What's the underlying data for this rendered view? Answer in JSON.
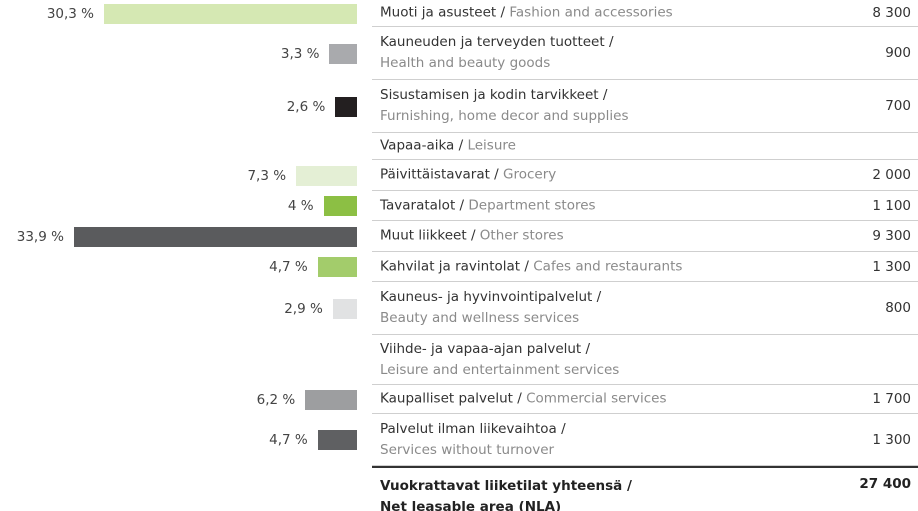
{
  "rows": [
    {
      "fi": "Muoti ja asusteet",
      "en": "Fashion and accessories",
      "share": 30.3,
      "share_label": "30,3 %",
      "color": "#d5e8b3",
      "area": "8 300"
    },
    {
      "fi": "Kauneuden ja terveyden tuotteet",
      "en": "Health and beauty goods",
      "share": 3.3,
      "share_label": "3,3 %",
      "color": "#a9aaad",
      "area": "900"
    },
    {
      "fi": "Sisustamisen ja kodin tarvikkeet",
      "en": "Furnishing, home decor and supplies",
      "share": 2.6,
      "share_label": "2,6 %",
      "color": "#231f20",
      "area": "700"
    },
    {
      "fi": "Vapaa-aika",
      "en": "Leisure"
    },
    {
      "fi": "Päivittäistavarat",
      "en": "Grocery",
      "share": 7.3,
      "share_label": "7,3 %",
      "color": "#e4efd5",
      "area": "2 000"
    },
    {
      "fi": "Tavaratalot",
      "en": "Department stores",
      "share": 4,
      "share_label": "4 %",
      "color": "#8cbf44",
      "area": "1 100"
    },
    {
      "fi": "Muut liikkeet",
      "en": "Other stores",
      "share": 33.9,
      "share_label": "33,9 %",
      "color": "#5a5b5d",
      "area": "9 300"
    },
    {
      "fi": "Kahvilat ja ravintolat",
      "en": "Cafes and restaurants",
      "share": 4.7,
      "share_label": "4,7 %",
      "color": "#a3cc6b",
      "area": "1 300"
    },
    {
      "fi": "Kauneus- ja hyvinvointipalvelut",
      "en": "Beauty and wellness services",
      "share": 2.9,
      "share_label": "2,9 %",
      "color": "#e1e2e3",
      "area": "800"
    },
    {
      "fi": "Viihde- ja vapaa-ajan palvelut",
      "en": "Leisure and entertainment services"
    },
    {
      "fi": "Kaupalliset palvelut",
      "en": "Commercial services",
      "share": 6.2,
      "share_label": "6,2 %",
      "color": "#9d9ea0",
      "area": "1 700"
    },
    {
      "fi": "Palvelut ilman liikevaihtoa",
      "en": "Services without turnover",
      "share": 4.7,
      "share_label": "4,7 %",
      "color": "#5f6062",
      "area": "1 300"
    }
  ],
  "total": {
    "fi": "Vuokrattavat liiketilat yhteensä",
    "en": "Net leasable area (NLA)",
    "area": "27 400"
  }
}
